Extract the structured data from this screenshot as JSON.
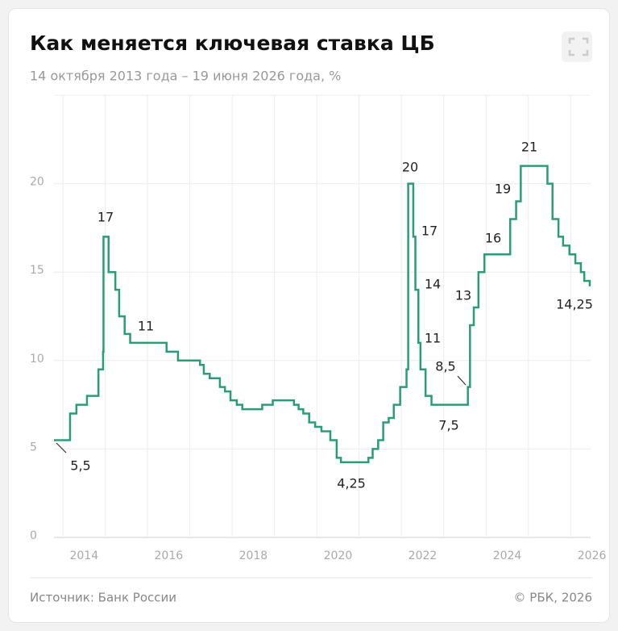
{
  "chart_data": {
    "type": "step",
    "title": "Как меняется ключевая ставка ЦБ",
    "subtitle": "14 октября 2013 года – 19 июня 2026 года, %",
    "source": "Источник: Банк России",
    "copyright": "© РБК, 2026",
    "color": "#2a9d78",
    "grid": true,
    "xlim": [
      2013.79,
      2026.47
    ],
    "xticks": [
      2014,
      2016,
      2018,
      2020,
      2022,
      2024,
      2026
    ],
    "ylim": [
      0,
      25
    ],
    "yticks": [
      0,
      5,
      10,
      15,
      20
    ],
    "x": [
      2013.79,
      2014.17,
      2014.32,
      2014.57,
      2014.84,
      2014.95,
      2014.96,
      2015.08,
      2015.24,
      2015.33,
      2015.46,
      2015.59,
      2016.45,
      2016.72,
      2017.24,
      2017.33,
      2017.47,
      2017.71,
      2017.83,
      2017.96,
      2018.11,
      2018.24,
      2018.71,
      2018.96,
      2019.46,
      2019.57,
      2019.68,
      2019.82,
      2019.96,
      2020.11,
      2020.32,
      2020.47,
      2020.57,
      2021.22,
      2021.32,
      2021.45,
      2021.57,
      2021.7,
      2021.82,
      2021.97,
      2022.12,
      2022.16,
      2022.28,
      2022.33,
      2022.4,
      2022.45,
      2022.57,
      2022.71,
      2023.57,
      2023.62,
      2023.71,
      2023.82,
      2023.96,
      2024.57,
      2024.71,
      2024.82,
      2025.45,
      2025.57,
      2025.71,
      2025.82,
      2025.97,
      2026.11,
      2026.24,
      2026.32,
      2026.45
    ],
    "values": [
      5.5,
      7,
      7.5,
      8,
      9.5,
      10.5,
      17,
      15,
      14,
      12.5,
      11.5,
      11,
      10.5,
      10,
      9.75,
      9.25,
      9,
      8.5,
      8.25,
      7.75,
      7.5,
      7.25,
      7.5,
      7.75,
      7.5,
      7.25,
      7,
      6.5,
      6.25,
      6,
      5.5,
      4.5,
      4.25,
      4.5,
      5,
      5.5,
      6.5,
      6.75,
      7.5,
      8.5,
      9.5,
      20,
      17,
      14,
      11,
      9.5,
      8,
      7.5,
      8.5,
      12,
      13,
      15,
      16,
      18,
      19,
      21,
      20,
      18,
      17,
      16.5,
      16,
      15.5,
      15,
      14.5,
      14.25
    ],
    "annotations": [
      {
        "text": "5,5",
        "x": 2013.79,
        "y": 5.5
      },
      {
        "text": "17",
        "x": 2014.96,
        "y": 17
      },
      {
        "text": "11",
        "x": 2015.59,
        "y": 11
      },
      {
        "text": "4,25",
        "x": 2020.57,
        "y": 4.25
      },
      {
        "text": "20",
        "x": 2022.16,
        "y": 20
      },
      {
        "text": "17",
        "x": 2022.28,
        "y": 17
      },
      {
        "text": "14",
        "x": 2022.33,
        "y": 14
      },
      {
        "text": "11",
        "x": 2022.4,
        "y": 11
      },
      {
        "text": "7,5",
        "x": 2022.71,
        "y": 7.5
      },
      {
        "text": "8,5",
        "x": 2023.57,
        "y": 8.5
      },
      {
        "text": "13",
        "x": 2023.71,
        "y": 13
      },
      {
        "text": "16",
        "x": 2023.96,
        "y": 16
      },
      {
        "text": "19",
        "x": 2024.71,
        "y": 19
      },
      {
        "text": "21",
        "x": 2024.82,
        "y": 21
      },
      {
        "text": "14,25",
        "x": 2026.45,
        "y": 14.25
      }
    ]
  }
}
